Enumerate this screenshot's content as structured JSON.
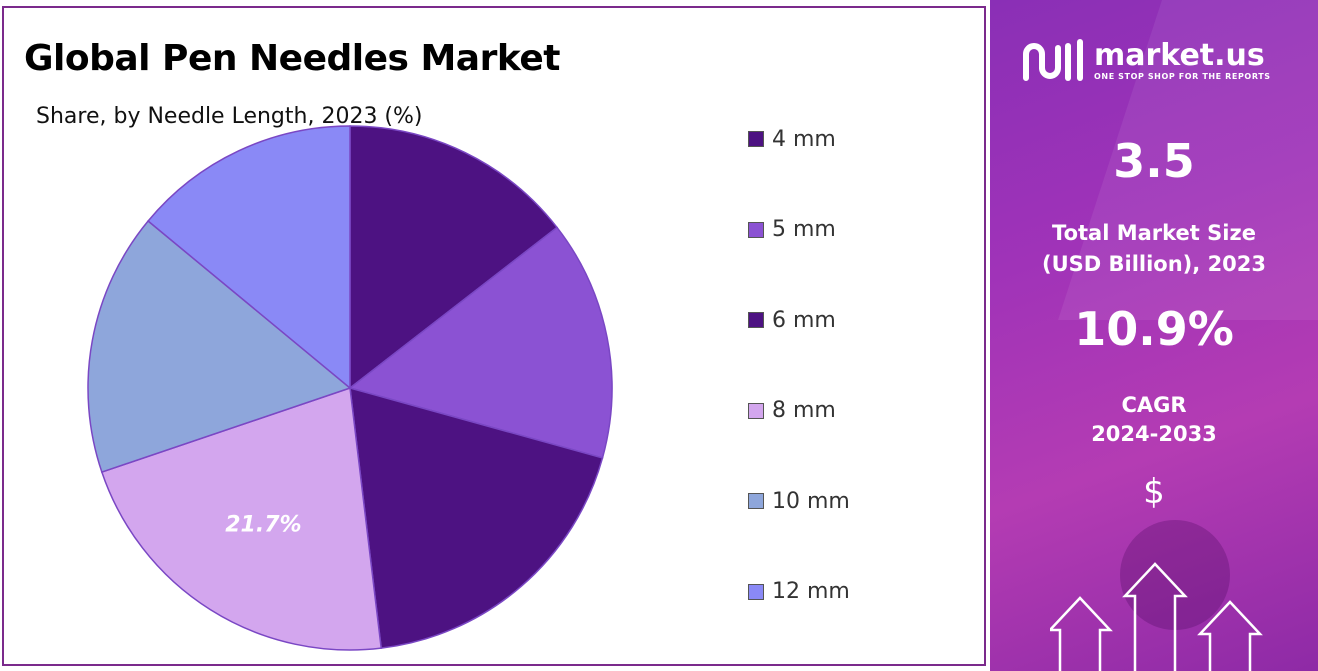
{
  "title": "Global Pen Needles Market",
  "subtitle": "Share, by Needle Length, 2023 (%)",
  "chart_data": {
    "type": "pie",
    "title": "Global Pen Needles Market",
    "subtitle": "Share, by Needle Length, 2023 (%)",
    "slices": [
      {
        "label": "4 mm",
        "value": 14.5,
        "color": "#4d1282"
      },
      {
        "label": "5 mm",
        "value": 14.8,
        "color": "#8b52d3"
      },
      {
        "label": "6 mm",
        "value": 18.8,
        "color": "#4d1282"
      },
      {
        "label": "8 mm",
        "value": 21.7,
        "color": "#d3a6ee",
        "data_label": "21.7%"
      },
      {
        "label": "10 mm",
        "value": 16.2,
        "color": "#8ea6db"
      },
      {
        "label": "12 mm",
        "value": 14.0,
        "color": "#8a89f6"
      }
    ],
    "start_angle": "12 o'clock",
    "direction": "clockwise",
    "legend_position": "right"
  },
  "sidebar": {
    "brand_name": "market.us",
    "brand_tagline": "ONE STOP SHOP FOR THE REPORTS",
    "market_size_value": "3.5",
    "market_size_label_line1": "Total Market Size",
    "market_size_label_line2": "(USD Billion), 2023",
    "cagr_value": "10.9%",
    "cagr_label": "CAGR",
    "cagr_period": "2024-2033",
    "currency_symbol": "$"
  }
}
